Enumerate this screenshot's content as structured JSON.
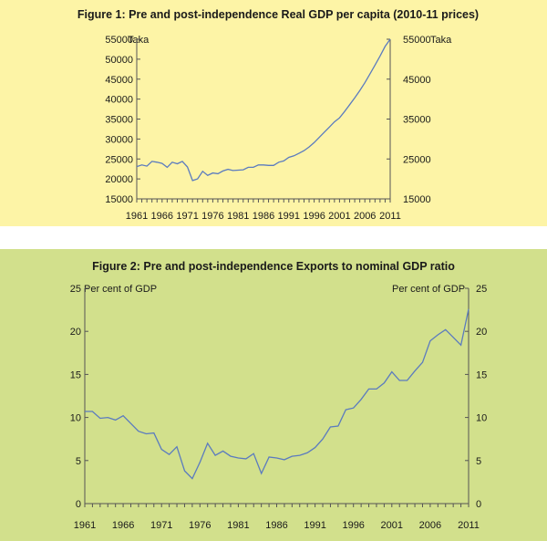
{
  "chart_data": [
    {
      "type": "line",
      "title": "Figure 1: Pre and post-independence Real GDP per capita (2010-11 prices)",
      "left_unit": "Taka",
      "right_unit": "Taka",
      "x_tick_labels": [
        "1961",
        "1966",
        "1971",
        "1976",
        "1981",
        "1986",
        "1991",
        "1996",
        "2001",
        "2006",
        "2011"
      ],
      "left_ticks": [
        "15000",
        "20000",
        "25000",
        "30000",
        "35000",
        "40000",
        "45000",
        "50000",
        "55000"
      ],
      "right_ticks": [
        "15000",
        "25000",
        "35000",
        "45000",
        "55000"
      ],
      "xlim": [
        1961,
        2011
      ],
      "ylim": [
        15000,
        55000
      ],
      "x": [
        1961,
        1962,
        1963,
        1964,
        1965,
        1966,
        1967,
        1968,
        1969,
        1970,
        1971,
        1972,
        1973,
        1974,
        1975,
        1976,
        1977,
        1978,
        1979,
        1980,
        1981,
        1982,
        1983,
        1984,
        1985,
        1986,
        1987,
        1988,
        1989,
        1990,
        1991,
        1992,
        1993,
        1994,
        1995,
        1996,
        1997,
        1998,
        1999,
        2000,
        2001,
        2002,
        2003,
        2004,
        2005,
        2006,
        2007,
        2008,
        2009,
        2010,
        2011
      ],
      "series": [
        {
          "values": [
            23100,
            23500,
            23200,
            24400,
            24200,
            23900,
            22900,
            24200,
            23800,
            24400,
            23000,
            19600,
            20000,
            21900,
            20900,
            21500,
            21300,
            22000,
            22400,
            22100,
            22200,
            22300,
            22900,
            22900,
            23500,
            23500,
            23400,
            23400,
            24200,
            24500,
            25400,
            25800,
            26400,
            27100,
            28000,
            29100,
            30400,
            31700,
            33000,
            34300,
            35300,
            36900,
            38600,
            40300,
            42100,
            44100,
            46300,
            48500,
            50800,
            53200,
            55000
          ]
        }
      ]
    },
    {
      "type": "line",
      "title": "Figure 2: Pre and post-independence Exports to nominal GDP ratio",
      "left_unit": "Per cent of GDP",
      "right_unit": "Per cent of GDP",
      "x_tick_labels": [
        "1961",
        "1966",
        "1971",
        "1976",
        "1981",
        "1986",
        "1991",
        "1996",
        "2001",
        "2006",
        "2011"
      ],
      "left_ticks": [
        "0",
        "5",
        "10",
        "15",
        "20",
        "25"
      ],
      "right_ticks": [
        "0",
        "5",
        "10",
        "15",
        "20",
        "25"
      ],
      "xlim": [
        1961,
        2011
      ],
      "ylim": [
        0,
        25
      ],
      "x": [
        1961,
        1962,
        1963,
        1964,
        1965,
        1966,
        1967,
        1968,
        1969,
        1970,
        1971,
        1972,
        1973,
        1974,
        1975,
        1976,
        1977,
        1978,
        1979,
        1980,
        1981,
        1982,
        1983,
        1984,
        1985,
        1986,
        1987,
        1988,
        1989,
        1990,
        1991,
        1992,
        1993,
        1994,
        1995,
        1996,
        1997,
        1998,
        1999,
        2000,
        2001,
        2002,
        2003,
        2004,
        2005,
        2006,
        2007,
        2008,
        2009,
        2010,
        2011
      ],
      "series": [
        {
          "values": [
            10.7,
            10.7,
            9.9,
            10.0,
            9.7,
            10.2,
            9.3,
            8.4,
            8.1,
            8.2,
            6.3,
            5.7,
            6.6,
            3.8,
            2.9,
            4.8,
            7.0,
            5.6,
            6.1,
            5.5,
            5.3,
            5.2,
            5.8,
            3.5,
            5.4,
            5.3,
            5.1,
            5.5,
            5.6,
            5.9,
            6.5,
            7.5,
            8.9,
            9.0,
            10.9,
            11.1,
            12.1,
            13.3,
            13.3,
            14.0,
            15.3,
            14.3,
            14.3,
            15.4,
            16.4,
            18.9,
            19.6,
            20.2,
            19.3,
            18.4,
            22.6
          ]
        }
      ]
    }
  ]
}
